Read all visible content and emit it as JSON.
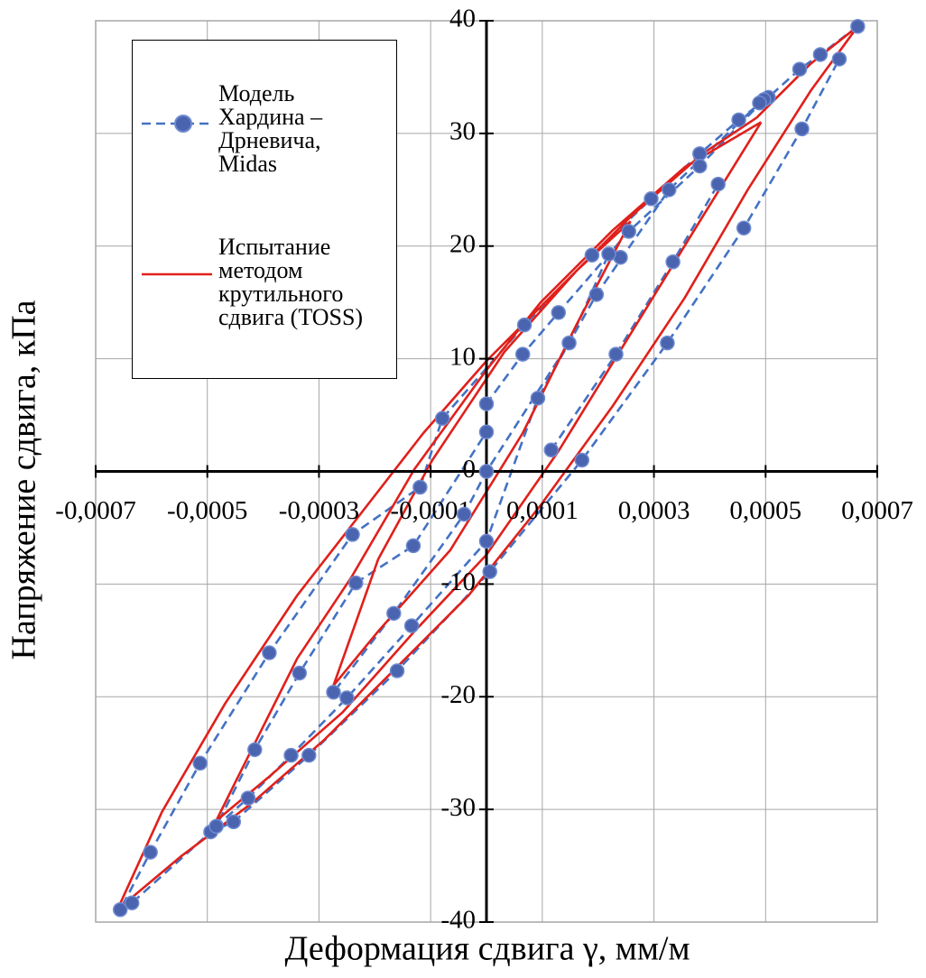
{
  "chart_data": {
    "type": "line",
    "x_label": "Деформация сдвига γ, мм/м",
    "y_label": "Напряжение сдвига, кПа",
    "xlim": [
      -0.0007,
      0.0007
    ],
    "ylim": [
      -40,
      40
    ],
    "xticks": [
      {
        "value": -0.0007,
        "label": "-0,0007"
      },
      {
        "value": -0.0005,
        "label": "-0,0005"
      },
      {
        "value": -0.0003,
        "label": "-0,0003"
      },
      {
        "value": -0.0001,
        "label": "-0,0001"
      },
      {
        "value": 0.0001,
        "label": "0,0001"
      },
      {
        "value": 0.0003,
        "label": "0,0003"
      },
      {
        "value": 0.0005,
        "label": "0,0005"
      },
      {
        "value": 0.0007,
        "label": "0,0007"
      }
    ],
    "yticks": [
      -40,
      -30,
      -20,
      -10,
      0,
      10,
      20,
      30,
      40
    ],
    "grid": true,
    "legend": "top-left",
    "series": [
      {
        "name": "Модель Хардина – Дрневича, Midas",
        "color": "#4a64b0",
        "line_style": "dashed",
        "marker": "circle",
        "x": [
          0.000665,
          0.000598,
          0.000561,
          0.000505,
          0.000452,
          0.000382,
          0.000295,
          0.000189,
          6.8e-05,
          -7.9e-05,
          -0.000119,
          -0.00024,
          -0.000389,
          -0.000513,
          -0.000602,
          -0.000656,
          -0.000635,
          -0.000494,
          -0.000453,
          -0.000318,
          -0.00016,
          6e-06,
          0.000171,
          0.000324,
          0.000461,
          0.000565,
          0.000632,
          null,
          0.000497,
          0.000382,
          0.000255,
          0.000129,
          6.5e-05,
          0,
          0,
          -0.000131,
          -0.000234,
          -0.000335,
          -0.000415,
          -0.000484,
          -0.000427,
          -0.00035,
          -0.00025,
          -0.000134,
          0,
          9.2e-05,
          0.000197,
          0.000327,
          0.000489,
          null,
          0.00024,
          0.000219,
          0.000148,
          0,
          -4e-05,
          -0.000166,
          -0.000274,
          null,
          0.000116,
          0.000232,
          0.000334,
          0.000415
        ],
        "values": [
          39.5,
          37.0,
          35.7,
          33.2,
          31.2,
          28.2,
          24.2,
          19.2,
          13.0,
          4.7,
          -1.4,
          -5.6,
          -16.1,
          -25.9,
          -33.8,
          -38.9,
          -38.3,
          -32.0,
          -31.1,
          -25.2,
          -17.7,
          -8.9,
          1.0,
          11.4,
          21.6,
          30.4,
          36.6,
          null,
          33.0,
          27.1,
          21.3,
          14.1,
          10.4,
          6.0,
          3.5,
          -6.6,
          -9.9,
          -17.9,
          -24.7,
          -31.5,
          -29.0,
          -25.2,
          -20.1,
          -13.7,
          -6.2,
          6.5,
          15.7,
          25.0,
          32.7,
          null,
          19.0,
          19.3,
          11.4,
          0,
          -3.8,
          -12.6,
          -19.6,
          null,
          1.9,
          10.4,
          18.6,
          25.5
        ]
      },
      {
        "name": "Испытание методом крутильного сдвига (TOSS)",
        "color": "#e0201b",
        "line_style": "solid",
        "marker": "none",
        "x": [
          0.000665,
          0.000581,
          0.000484,
          0.000387,
          0.000258,
          0.000129,
          0,
          -0.000113,
          -0.000226,
          -0.000339,
          -0.000468,
          -0.000581,
          -0.000661,
          -0.000548,
          -0.000419,
          -0.00029,
          -0.000161,
          -3.2e-05,
          9.7e-05,
          0.000226,
          0.000355,
          0.000468,
          0.000581,
          0.000665,
          null,
          0.000492,
          0.000355,
          0.000226,
          9.7e-05,
          0,
          -0.000129,
          -0.000242,
          -0.000339,
          -0.000452,
          -0.000484,
          -0.000387,
          -0.000258,
          -0.000129,
          0,
          0.000129,
          0.000258,
          0.000387,
          0.000492,
          null,
          0.000258,
          0.000161,
          3.2e-05,
          -9.7e-05,
          -0.000194,
          -0.000274,
          -0.000194,
          -6.5e-05,
          6.5e-05,
          0.000161,
          0.000258
        ],
        "values": [
          39.5,
          36.2,
          31.4,
          28.2,
          22.6,
          16.2,
          9.8,
          3.4,
          -3.8,
          -11.0,
          -20.6,
          -30.2,
          -38.9,
          -34.2,
          -29.4,
          -23.8,
          -17.4,
          -11.0,
          -3.0,
          5.8,
          15.4,
          25.0,
          33.8,
          39.5,
          null,
          31.0,
          27.0,
          21.4,
          15.0,
          9.0,
          0.2,
          -9.4,
          -16.6,
          -27.8,
          -31.0,
          -27.0,
          -21.4,
          -14.2,
          -7.4,
          1.8,
          12.2,
          22.6,
          31.0,
          null,
          22.2,
          17.8,
          10.6,
          1.0,
          -7.8,
          -19.0,
          -14.2,
          -7.0,
          3.4,
          13.0,
          22.2
        ]
      }
    ]
  }
}
